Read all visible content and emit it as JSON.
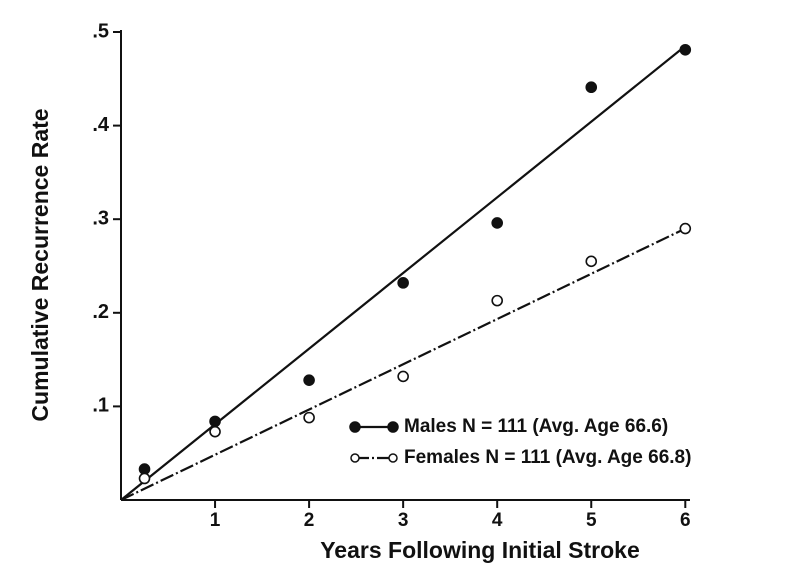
{
  "chart_data": {
    "type": "scatter",
    "xlabel": "Years Following Initial Stroke",
    "ylabel": "Cumulative Recurrence Rate",
    "xlim": [
      0,
      6.05
    ],
    "ylim": [
      0,
      0.5
    ],
    "xticks": [
      1,
      2,
      3,
      4,
      5,
      6
    ],
    "yticks": [
      {
        "value": 0.1,
        "label": ".1"
      },
      {
        "value": 0.2,
        "label": ".2"
      },
      {
        "value": 0.3,
        "label": ".3"
      },
      {
        "value": 0.4,
        "label": ".4"
      },
      {
        "value": 0.5,
        "label": ".5"
      }
    ],
    "series": [
      {
        "name": "Males N = 111 (Avg. Age 66.6)",
        "color": "#111111",
        "marker": "filled",
        "x": [
          0.25,
          1,
          2,
          3,
          4,
          5,
          6
        ],
        "values": [
          0.033,
          0.084,
          0.128,
          0.232,
          0.296,
          0.441,
          0.481
        ],
        "line_x": [
          0,
          6
        ],
        "line_y": [
          0,
          0.485
        ]
      },
      {
        "name": "Females N = 111 (Avg. Age 66.8)",
        "color": "#111111",
        "marker": "open",
        "x": [
          0.25,
          1,
          2,
          3,
          4,
          5,
          6
        ],
        "values": [
          0.023,
          0.073,
          0.088,
          0.132,
          0.213,
          0.255,
          0.29
        ],
        "line_x": [
          0,
          6
        ],
        "line_y": [
          0,
          0.29
        ]
      }
    ]
  }
}
